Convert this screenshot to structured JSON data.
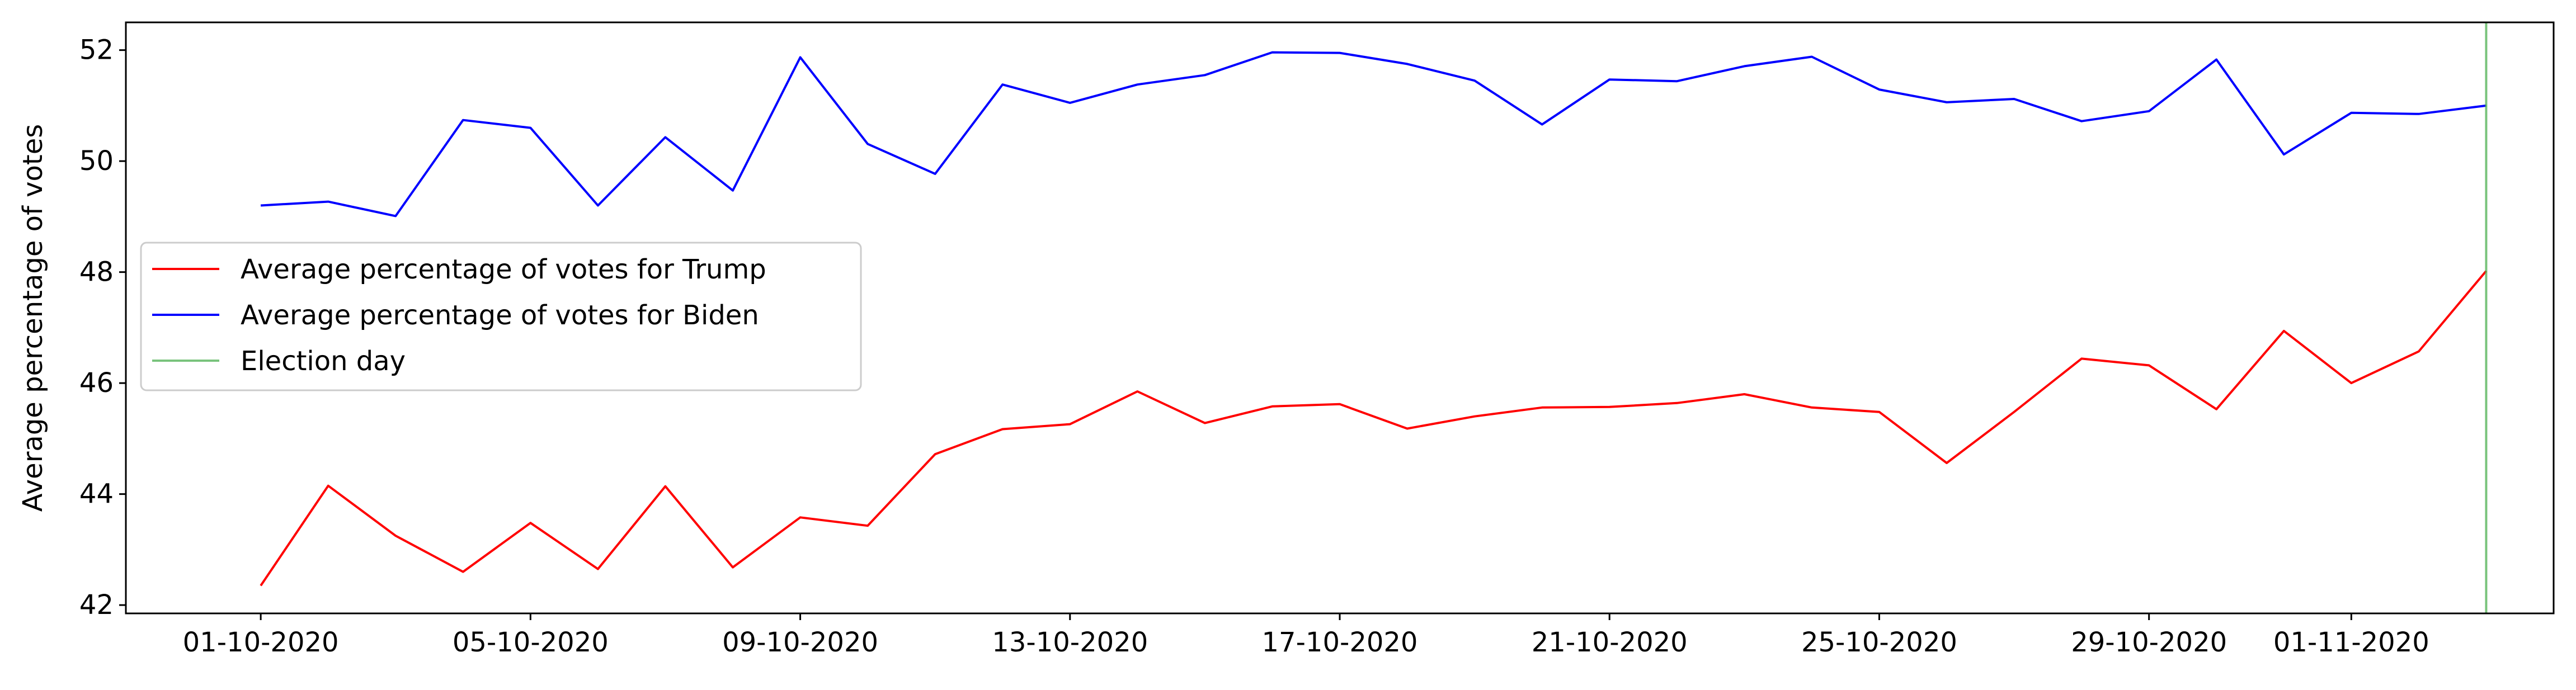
{
  "chart_data": {
    "type": "line",
    "ylabel": "Average percentage of votes",
    "xlabel": "",
    "title": "",
    "x": [
      "01-10-2020",
      "02-10-2020",
      "03-10-2020",
      "04-10-2020",
      "05-10-2020",
      "06-10-2020",
      "07-10-2020",
      "08-10-2020",
      "09-10-2020",
      "10-10-2020",
      "11-10-2020",
      "12-10-2020",
      "13-10-2020",
      "14-10-2020",
      "15-10-2020",
      "16-10-2020",
      "17-10-2020",
      "18-10-2020",
      "19-10-2020",
      "20-10-2020",
      "21-10-2020",
      "22-10-2020",
      "23-10-2020",
      "24-10-2020",
      "25-10-2020",
      "26-10-2020",
      "27-10-2020",
      "28-10-2020",
      "29-10-2020",
      "30-10-2020",
      "31-10-2020",
      "01-11-2020",
      "02-11-2020",
      "03-11-2020"
    ],
    "xticks": [
      "01-10-2020",
      "05-10-2020",
      "09-10-2020",
      "13-10-2020",
      "17-10-2020",
      "21-10-2020",
      "25-10-2020",
      "29-10-2020",
      "01-11-2020"
    ],
    "yticks": [
      42,
      44,
      46,
      48,
      50,
      52
    ],
    "ylim": [
      41.85,
      52.5
    ],
    "xlim": [
      "29-09-2020",
      "04-11-2020"
    ],
    "grid": false,
    "legend_position": "center-left",
    "series": [
      {
        "name": "Average percentage of votes for Trump",
        "color": "#ff0000",
        "values": [
          42.35,
          44.15,
          43.25,
          42.6,
          43.48,
          42.65,
          44.14,
          42.68,
          43.58,
          43.43,
          44.72,
          45.17,
          45.26,
          45.85,
          45.28,
          45.58,
          45.62,
          45.18,
          45.4,
          45.56,
          45.57,
          45.64,
          45.8,
          45.56,
          45.48,
          44.56,
          45.48,
          46.44,
          46.32,
          45.53,
          46.94,
          46.0,
          46.57,
          48.02
        ]
      },
      {
        "name": "Average percentage of votes for Biden",
        "color": "#0000ff",
        "values": [
          49.2,
          49.27,
          49.01,
          50.74,
          50.6,
          49.2,
          50.43,
          49.47,
          51.87,
          50.31,
          49.77,
          51.38,
          51.05,
          51.38,
          51.55,
          51.96,
          51.95,
          51.75,
          51.45,
          50.66,
          51.47,
          51.44,
          51.71,
          51.88,
          51.29,
          51.06,
          51.12,
          50.72,
          50.9,
          51.83,
          50.12,
          50.87,
          50.85,
          51.0
        ]
      }
    ],
    "vertical_lines": [
      {
        "name": "Election day",
        "x": "03-11-2020",
        "color": "#4caf50"
      }
    ]
  }
}
